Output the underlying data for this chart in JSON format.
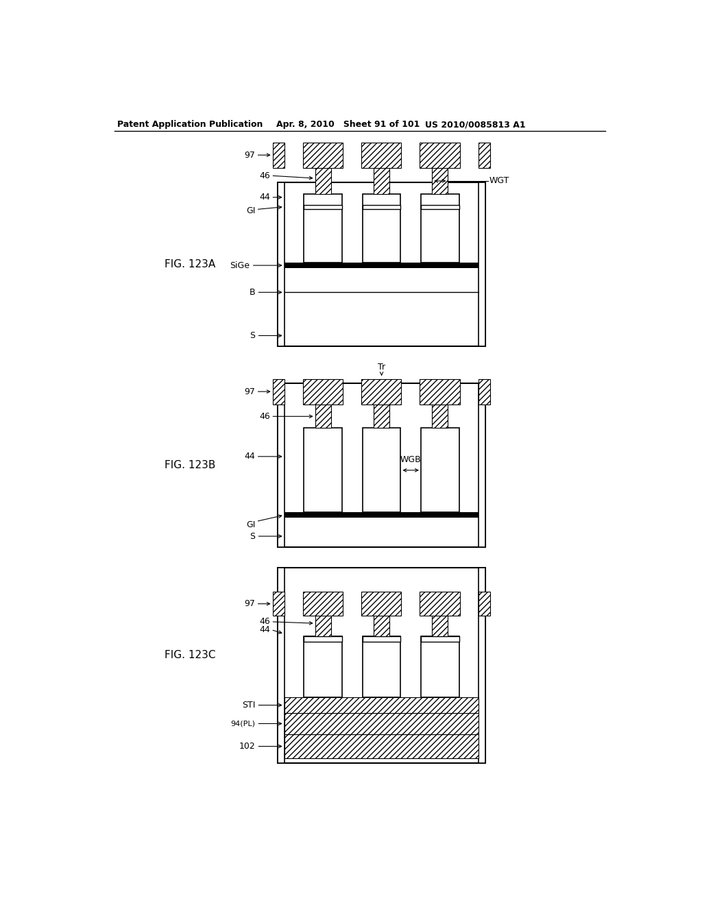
{
  "header_left": "Patent Application Publication",
  "header_mid": "Apr. 8, 2010   Sheet 91 of 101",
  "header_right": "US 2010/0085813 A1",
  "bg_color": "#ffffff"
}
